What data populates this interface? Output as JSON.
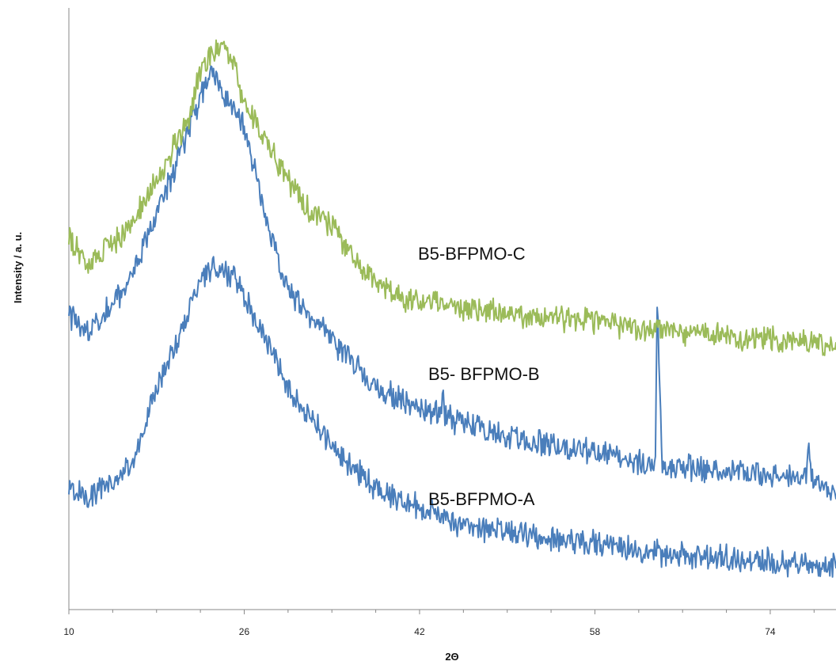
{
  "chart_data": {
    "type": "line",
    "title": "",
    "xlabel": "2Θ",
    "ylabel": "Intensity / a. u.",
    "xlim": [
      10,
      80
    ],
    "ylim": [
      0,
      100
    ],
    "x_ticks": [
      10,
      26,
      42,
      58,
      74
    ],
    "y_ticks_labeled": false,
    "grid": false,
    "legend": "none",
    "series_label_placement": "inline text labels",
    "series": [
      {
        "name": "B5-BFPMO-A",
        "color": "#4a7ebb",
        "points": [
          [
            10,
            20
          ],
          [
            12,
            19
          ],
          [
            14,
            21
          ],
          [
            16,
            25
          ],
          [
            18,
            37
          ],
          [
            20,
            45
          ],
          [
            22,
            55
          ],
          [
            23,
            57
          ],
          [
            24,
            56
          ],
          [
            25,
            56
          ],
          [
            26,
            52
          ],
          [
            28,
            45
          ],
          [
            30,
            37
          ],
          [
            34,
            27
          ],
          [
            38,
            20
          ],
          [
            42,
            17
          ],
          [
            46,
            14
          ],
          [
            50,
            13
          ],
          [
            58,
            11
          ],
          [
            66,
            9
          ],
          [
            74,
            8
          ],
          [
            80,
            7
          ]
        ]
      },
      {
        "name": "B5- BFPMO-B",
        "color": "#4a7ebb",
        "points": [
          [
            10,
            49
          ],
          [
            11.5,
            46
          ],
          [
            13,
            49
          ],
          [
            15,
            53
          ],
          [
            17,
            61
          ],
          [
            19,
            70
          ],
          [
            20.5,
            78
          ],
          [
            22,
            85
          ],
          [
            23,
            90
          ],
          [
            24,
            86
          ],
          [
            26,
            80
          ],
          [
            28,
            65
          ],
          [
            30,
            53
          ],
          [
            34,
            45
          ],
          [
            38,
            37
          ],
          [
            42,
            33
          ],
          [
            44,
            33
          ],
          [
            44.1,
            37
          ],
          [
            44.3,
            32
          ],
          [
            50,
            29
          ],
          [
            58,
            26
          ],
          [
            63.5,
            24
          ],
          [
            63.7,
            52
          ],
          [
            64.1,
            24
          ],
          [
            70,
            23
          ],
          [
            77.3,
            22
          ],
          [
            77.5,
            28
          ],
          [
            77.7,
            22
          ],
          [
            80,
            19
          ]
        ]
      },
      {
        "name": "B5-BFPMO-C",
        "color": "#9bbb59",
        "points": [
          [
            10,
            62
          ],
          [
            11.5,
            57
          ],
          [
            13,
            59
          ],
          [
            15,
            62
          ],
          [
            17,
            68
          ],
          [
            19,
            75
          ],
          [
            21,
            82
          ],
          [
            22,
            89
          ],
          [
            23,
            92
          ],
          [
            24,
            94
          ],
          [
            25,
            92
          ],
          [
            26,
            84
          ],
          [
            28,
            78
          ],
          [
            30,
            71
          ],
          [
            32,
            66
          ],
          [
            34,
            64
          ],
          [
            37,
            56
          ],
          [
            40,
            52
          ],
          [
            42,
            51
          ],
          [
            44,
            51
          ],
          [
            46,
            50
          ],
          [
            50,
            49
          ],
          [
            58,
            48
          ],
          [
            66,
            46
          ],
          [
            74,
            45
          ],
          [
            80,
            44
          ]
        ]
      }
    ]
  }
}
